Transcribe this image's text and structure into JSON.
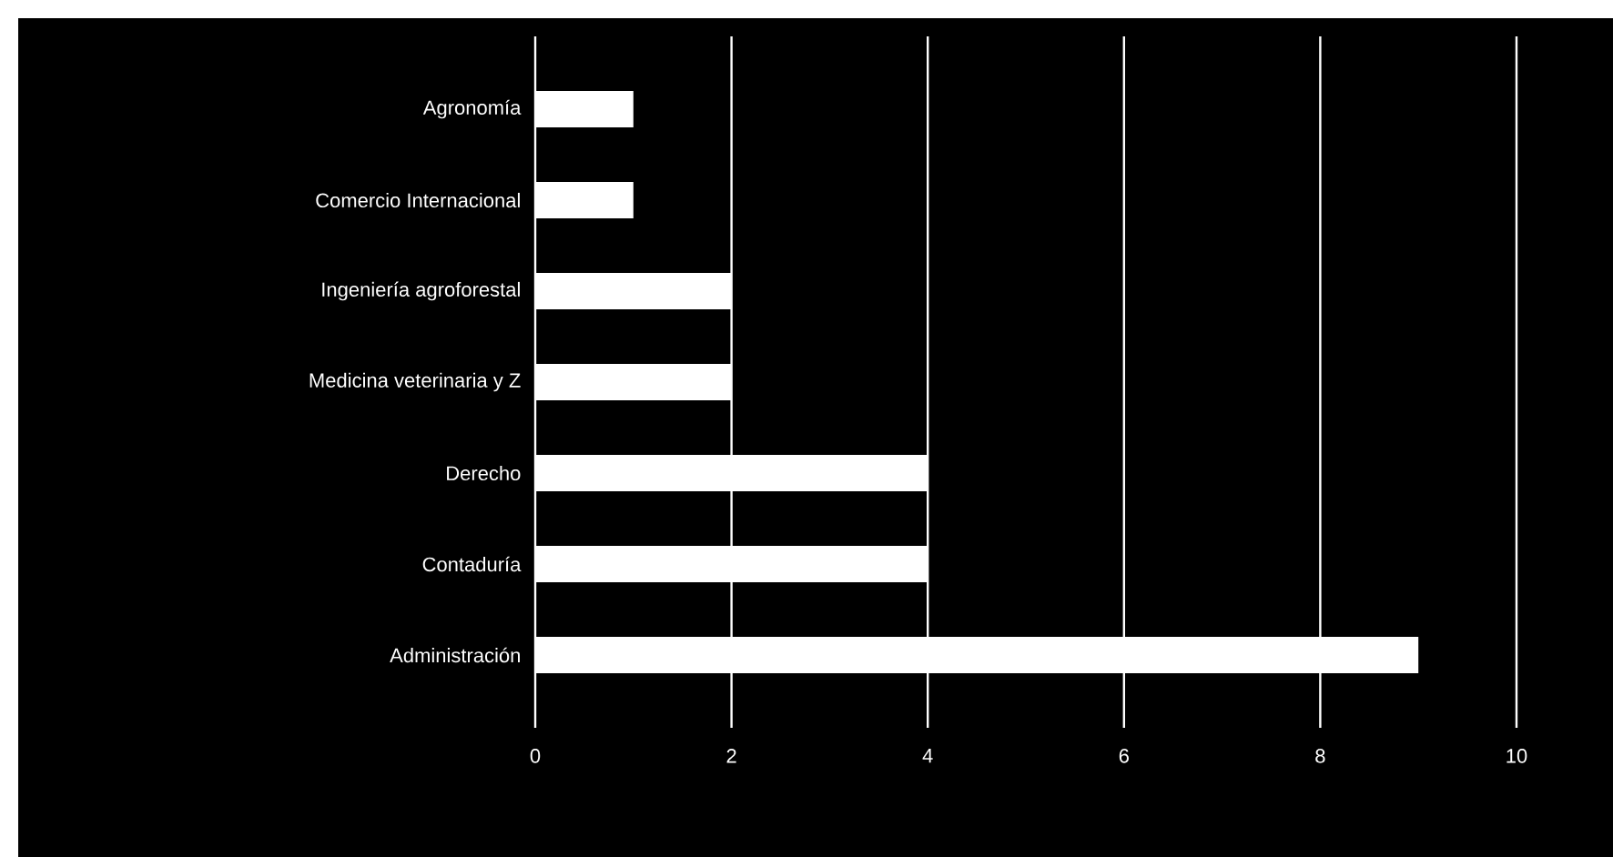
{
  "chart_data": {
    "type": "bar",
    "orientation": "horizontal",
    "categories": [
      "Agronomía",
      "Comercio Internacional",
      "Ingeniería agroforestal",
      "Medicina veterinaria y Z",
      "Derecho",
      "Contaduría",
      "Administración"
    ],
    "values": [
      1,
      1,
      2,
      2,
      4,
      4,
      9
    ],
    "color": "#ffffff",
    "xlim": [
      0,
      10
    ],
    "xticks": [
      0,
      2,
      4,
      6,
      8,
      10
    ],
    "grid": "x"
  }
}
